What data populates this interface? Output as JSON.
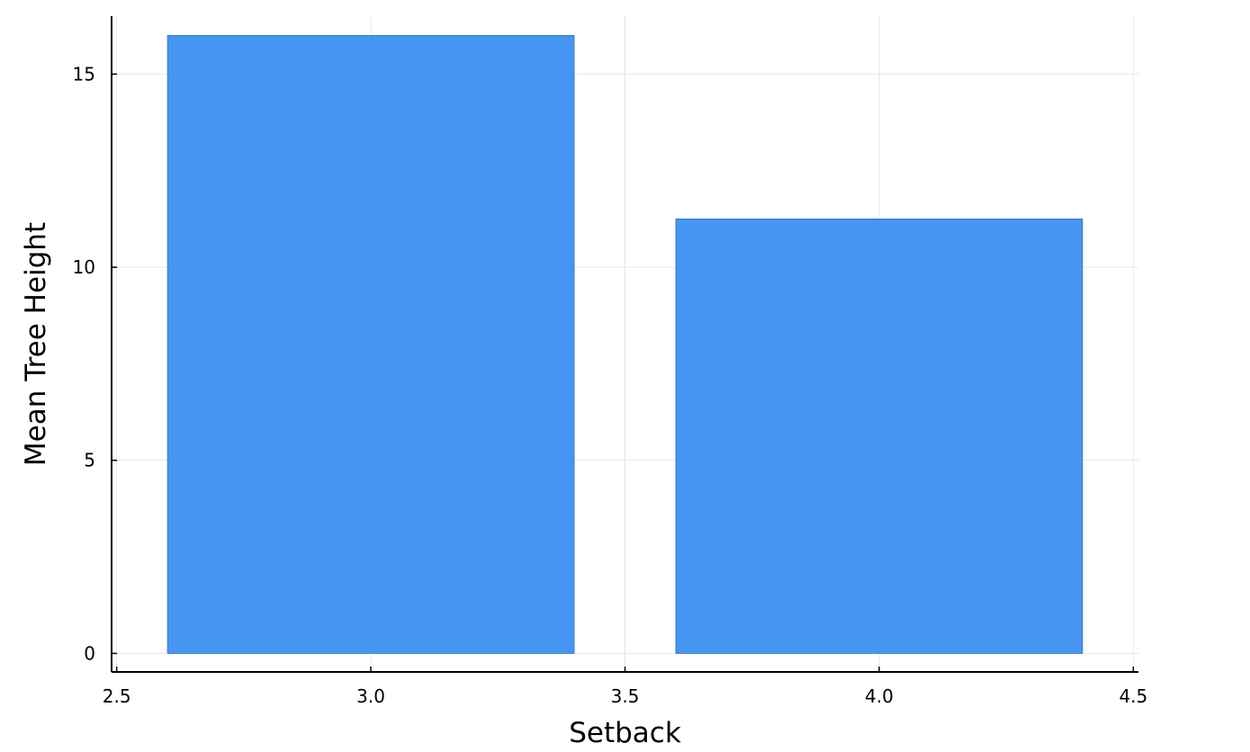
{
  "chart_data": {
    "type": "bar",
    "title": "",
    "xlabel": "Setback",
    "ylabel": "Mean Tree Height",
    "bars": [
      {
        "x": 3.0,
        "width": 0.8,
        "value": 16.0
      },
      {
        "x": 4.0,
        "width": 0.8,
        "value": 11.25
      }
    ],
    "xlim": [
      2.49,
      4.51
    ],
    "ylim": [
      -0.48,
      16.5
    ],
    "xticks": [
      2.5,
      3.0,
      3.5,
      4.0,
      4.5
    ],
    "xtick_labels": [
      "2.5",
      "3.0",
      "3.5",
      "4.0",
      "4.5"
    ],
    "yticks": [
      0,
      5,
      10,
      15
    ],
    "ytick_labels": [
      "0",
      "5",
      "10",
      "15"
    ],
    "grid": true,
    "legend": "none",
    "colors": {
      "bar_fill": "#4496f2",
      "bar_edge": "#2e6fb8",
      "grid": "#e6e6e6",
      "axis": "#000000"
    }
  }
}
